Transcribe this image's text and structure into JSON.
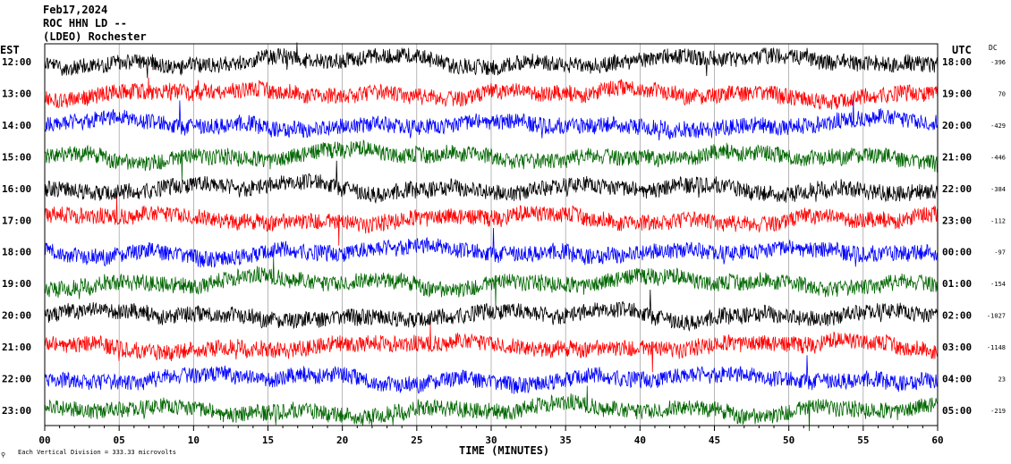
{
  "header": {
    "date": "Feb17,2024",
    "station": "ROC HHN LD --",
    "network": "(LDEO) Rochester"
  },
  "left_axis_label": "EST",
  "right_axis_label": "UTC",
  "dc_label": "DC",
  "footer": {
    "xlabel": "TIME (MINUTES)",
    "scale_note": "Each Vertical Division =  333.33 microvolts",
    "scale_glyph": "⚲"
  },
  "colors": {
    "black": "#000000",
    "red": "#ff0000",
    "blue": "#0000ff",
    "green": "#006600",
    "grid": "#888888"
  },
  "chart_data": {
    "type": "line",
    "title": "Feb17,2024 ROC HHN LD -- (LDEO) Rochester",
    "xlabel": "TIME (MINUTES)",
    "ylabel": "",
    "xlim": [
      0,
      60
    ],
    "x_ticks": [
      "00",
      "05",
      "10",
      "15",
      "20",
      "25",
      "30",
      "35",
      "40",
      "45",
      "50",
      "55",
      "60"
    ],
    "grid": true,
    "rows": [
      {
        "est": "12:00",
        "utc": "18:00",
        "dc": "-396",
        "color": "black"
      },
      {
        "est": "13:00",
        "utc": "19:00",
        "dc": "70",
        "color": "red"
      },
      {
        "est": "14:00",
        "utc": "20:00",
        "dc": "-429",
        "color": "blue"
      },
      {
        "est": "15:00",
        "utc": "21:00",
        "dc": "-446",
        "color": "green"
      },
      {
        "est": "16:00",
        "utc": "22:00",
        "dc": "-384",
        "color": "black"
      },
      {
        "est": "17:00",
        "utc": "23:00",
        "dc": "-112",
        "color": "red"
      },
      {
        "est": "18:00",
        "utc": "00:00",
        "dc": "-97",
        "color": "blue"
      },
      {
        "est": "19:00",
        "utc": "01:00",
        "dc": "-154",
        "color": "green"
      },
      {
        "est": "20:00",
        "utc": "02:00",
        "dc": "-1027",
        "color": "black"
      },
      {
        "est": "21:00",
        "utc": "03:00",
        "dc": "-1148",
        "color": "red"
      },
      {
        "est": "22:00",
        "utc": "04:00",
        "dc": "23",
        "color": "blue"
      },
      {
        "est": "23:00",
        "utc": "05:00",
        "dc": "-219",
        "color": "green"
      }
    ]
  }
}
